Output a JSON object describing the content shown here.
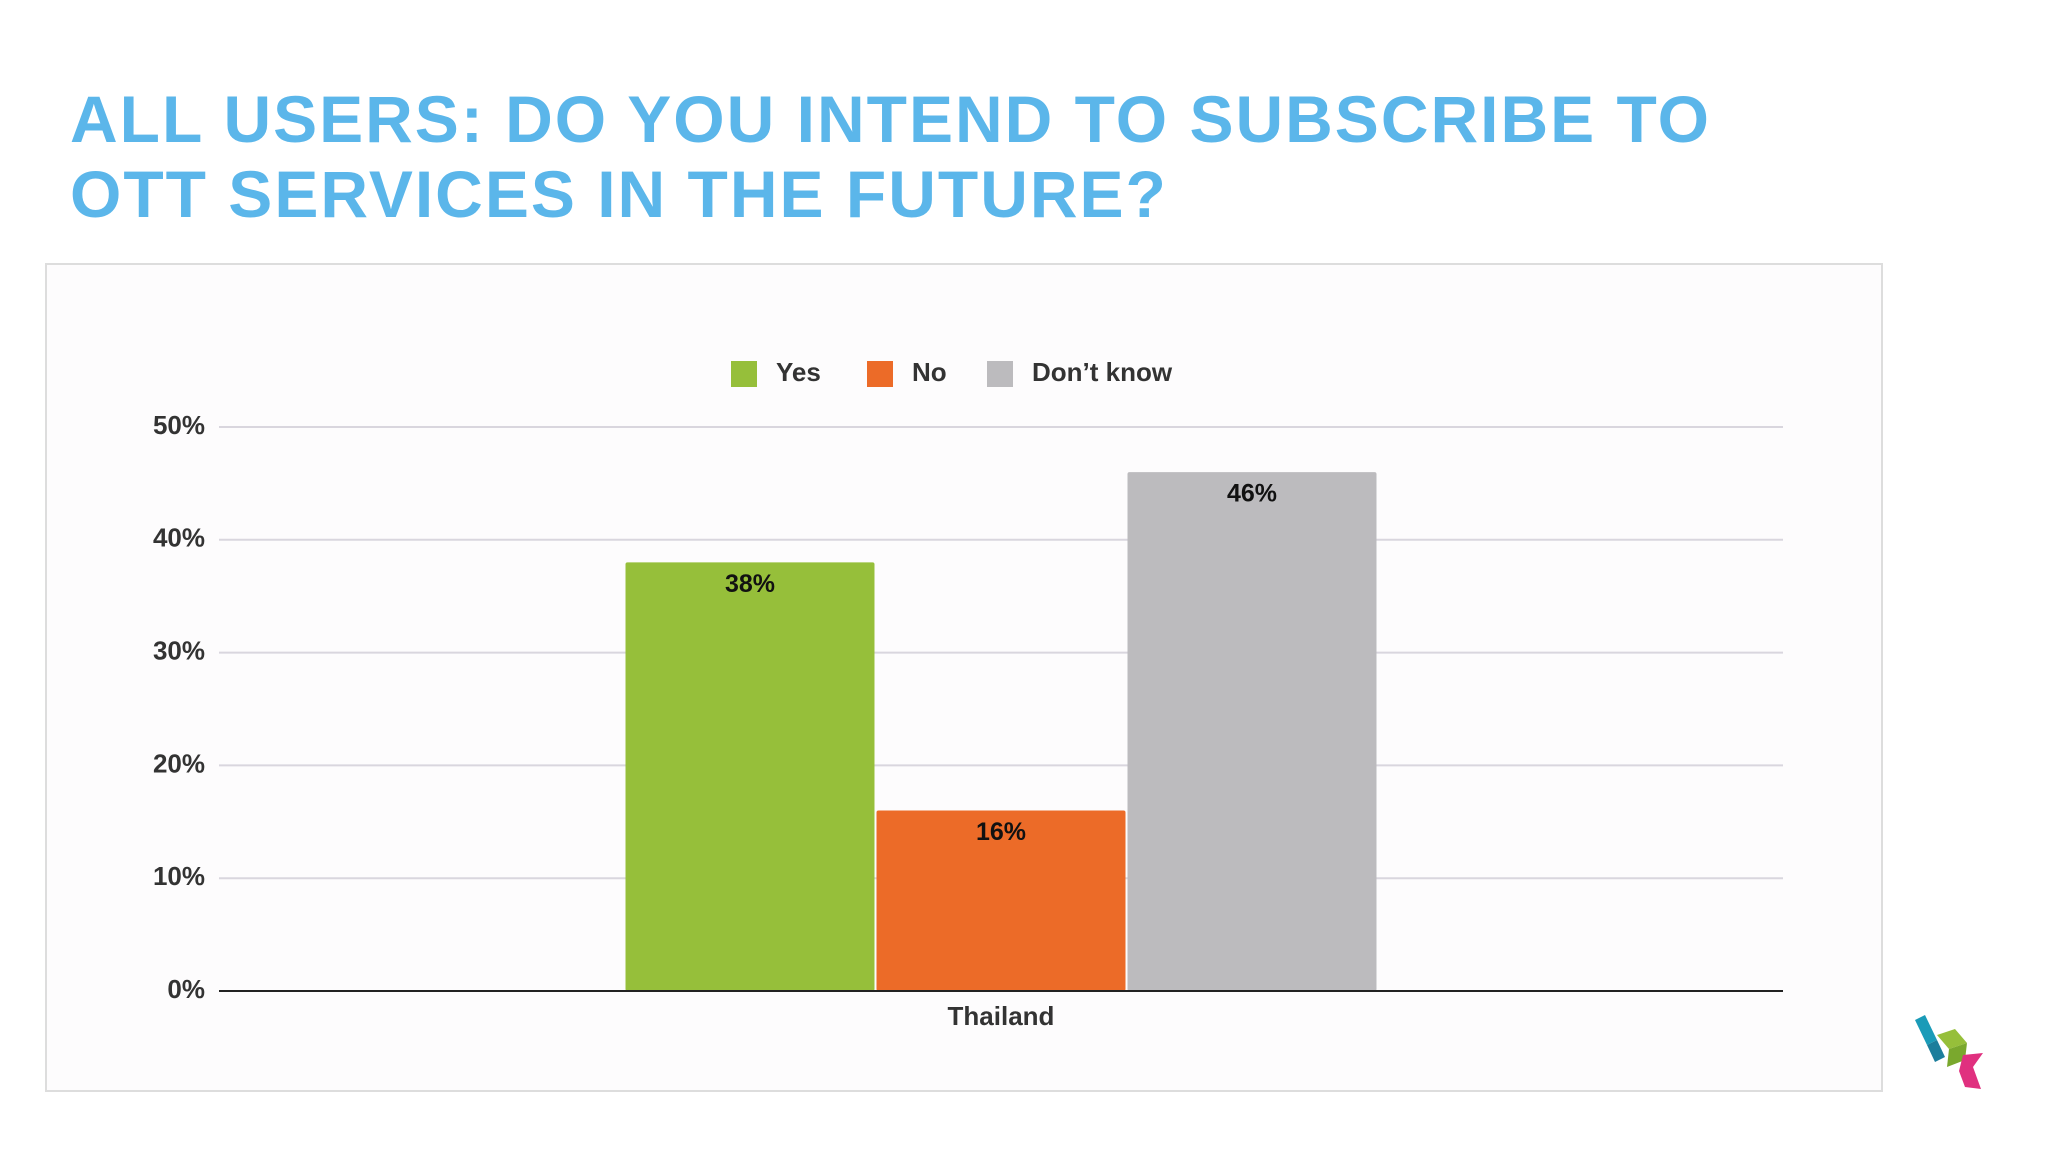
{
  "chart_data": {
    "type": "bar",
    "title": "ALL USERS: DO YOU INTEND TO SUBSCRIBE TO OTT SERVICES IN THE FUTURE?",
    "categories": [
      "Thailand"
    ],
    "series": [
      {
        "name": "Yes",
        "color": "#96bf3a",
        "values": [
          38
        ],
        "value_labels": [
          "38%"
        ]
      },
      {
        "name": "No",
        "color": "#ec6b28",
        "values": [
          16
        ],
        "value_labels": [
          "16%"
        ]
      },
      {
        "name": "Don’t know",
        "color": "#bcbbbe",
        "values": [
          46
        ],
        "value_labels": [
          "46%"
        ]
      }
    ],
    "ylim": [
      0,
      50
    ],
    "yticks": [
      {
        "value": 0,
        "label": "0%"
      },
      {
        "value": 10,
        "label": "10%"
      },
      {
        "value": 20,
        "label": "20%"
      },
      {
        "value": 30,
        "label": "30%"
      },
      {
        "value": 40,
        "label": "40%"
      },
      {
        "value": 50,
        "label": "50%"
      }
    ],
    "grid": true,
    "legend": "top"
  }
}
